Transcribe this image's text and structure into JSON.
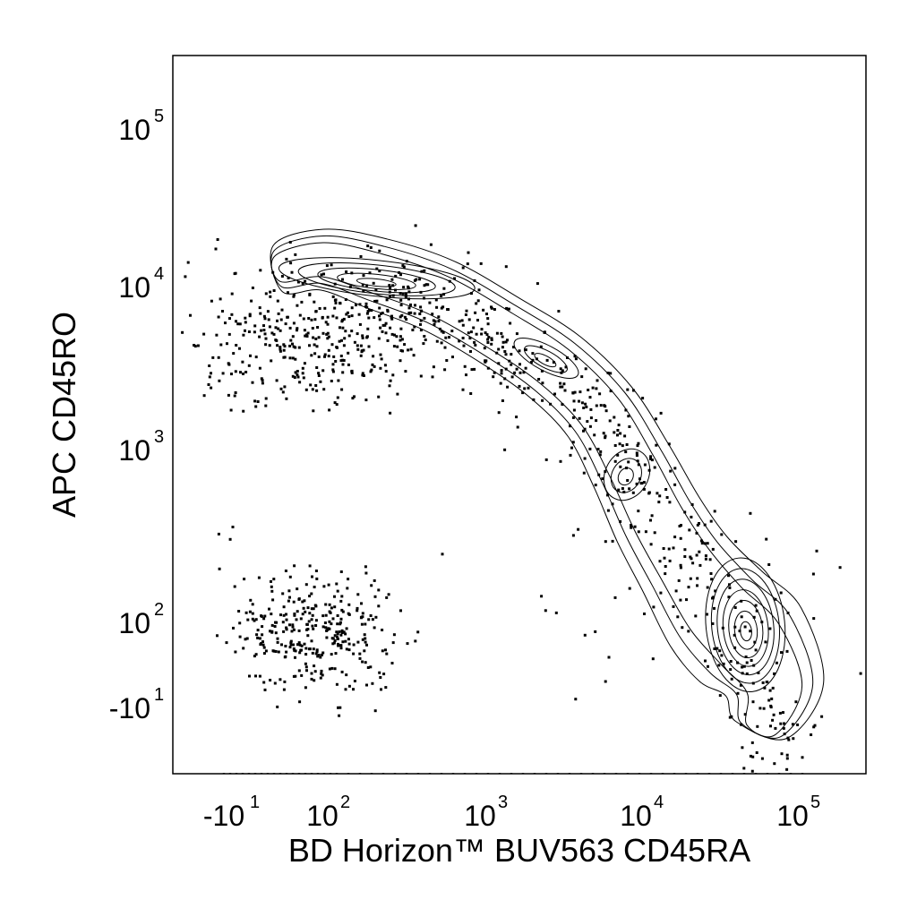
{
  "chart_data": {
    "type": "scatter",
    "title": "",
    "xlabel": "BD Horizon™ BUV563 CD45RA",
    "ylabel": "APC CD45RO",
    "x_scale": "biexponential (logicle)",
    "y_scale": "biexponential (logicle)",
    "x_ticks": [
      {
        "value": -10,
        "base": "-10",
        "exp": "1"
      },
      {
        "value": 100,
        "base": "10",
        "exp": "2"
      },
      {
        "value": 1000,
        "base": "10",
        "exp": "3"
      },
      {
        "value": 10000,
        "base": "10",
        "exp": "4"
      },
      {
        "value": 100000,
        "base": "10",
        "exp": "5"
      }
    ],
    "y_ticks": [
      {
        "value": -10,
        "base": "-10",
        "exp": "1"
      },
      {
        "value": 100,
        "base": "10",
        "exp": "2"
      },
      {
        "value": 1000,
        "base": "10",
        "exp": "3"
      },
      {
        "value": 10000,
        "base": "10",
        "exp": "4"
      },
      {
        "value": 100000,
        "base": "10",
        "exp": "5"
      }
    ],
    "xlim": [
      -60,
      262144
    ],
    "ylim": [
      -60,
      262144
    ],
    "grid": false,
    "legend": "none",
    "plot_style": "contour plot with outliers shown as dots",
    "contour_levels": 10,
    "populations": [
      {
        "name": "",
        "center": {
          "x": 200,
          "y": 11000
        }
      },
      {
        "name": "",
        "center": {
          "x": 45000,
          "y": 70
        }
      },
      {
        "name": "",
        "center": {
          "x": 120,
          "y": 70
        }
      }
    ],
    "colors": {
      "contour": "#000000",
      "dots": "#000000",
      "background": "#ffffff"
    }
  }
}
